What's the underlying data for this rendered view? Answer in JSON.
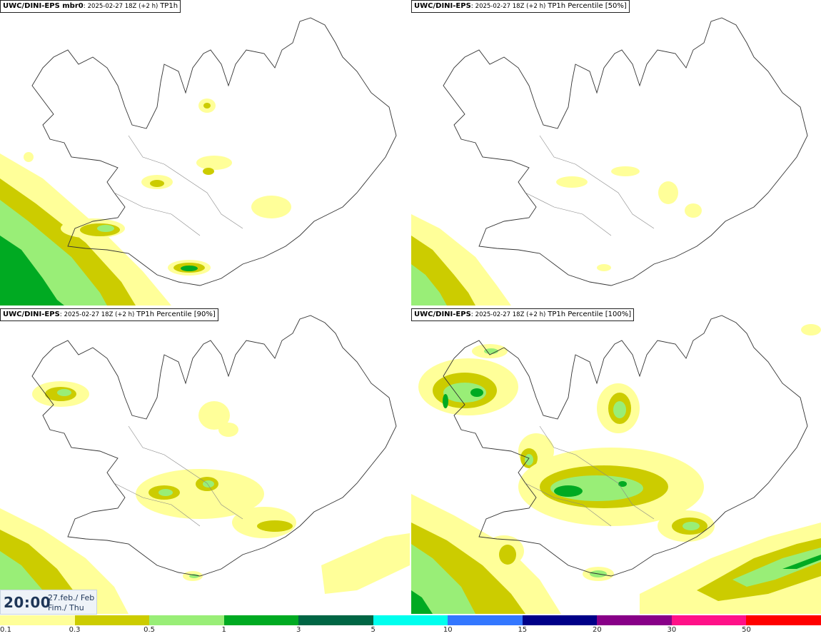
{
  "panels": [
    {
      "source": "UWC/DINI-EPS mbr0",
      "run": "2025-02-27 18Z (+2 h)",
      "param": "TP1h"
    },
    {
      "source": "UWC/DINI-EPS",
      "run": "2025-02-27 18Z (+2 h)",
      "param": "TP1h Percentile [50%]"
    },
    {
      "source": "UWC/DINI-EPS",
      "run": "2025-02-27 18Z (+2 h)",
      "param": "TP1h Percentile [90%]"
    },
    {
      "source": "UWC/DINI-EPS",
      "run": "2025-02-27 18Z (+2 h)",
      "param": "TP1h Percentile [100%]"
    }
  ],
  "valid_time": {
    "hour": "20:00",
    "date_is_en": "27.feb./ Feb",
    "weekday_is_en": "Fim./ Thu"
  },
  "legend": {
    "ticks": [
      "0.1",
      "0.3",
      "0.5",
      "1",
      "3",
      "5",
      "10",
      "15",
      "20",
      "30",
      "50"
    ],
    "colors": [
      "#ffff99",
      "#cccc00",
      "#99ee77",
      "#00aa22",
      "#006644",
      "#00ffee",
      "#3377ff",
      "#000088",
      "#880088",
      "#ff1188",
      "#ff0000"
    ]
  },
  "precip_colors": {
    "0.1": "#ffff99",
    "0.3": "#cccc00",
    "0.5": "#99ee77",
    "1": "#00aa22"
  }
}
